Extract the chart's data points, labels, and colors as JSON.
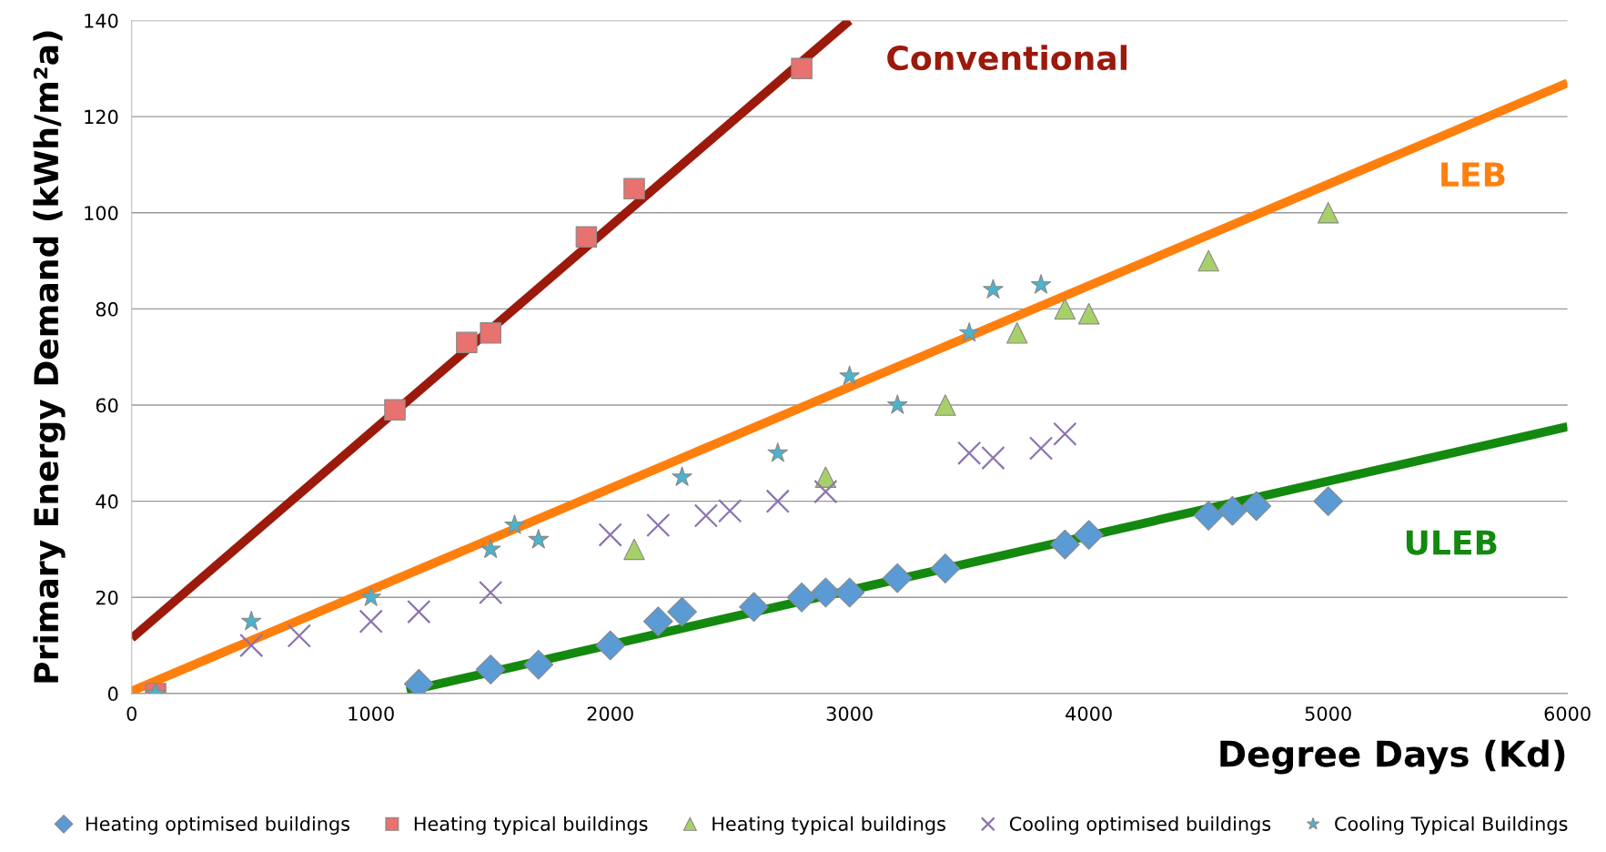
{
  "chart_data": {
    "type": "scatter",
    "xlabel": "Degree Days (Kd)",
    "ylabel": "Primary Energy Demand (kWh/m²a)",
    "xlim": [
      0,
      6000
    ],
    "xticks": [
      0,
      1000,
      2000,
      3000,
      4000,
      5000,
      6000
    ],
    "ylim": [
      0,
      140
    ],
    "yticks": [
      0,
      20,
      40,
      60,
      80,
      100,
      120,
      140
    ],
    "grid": "y",
    "legend": "bottom",
    "series": [
      {
        "name": "Heating optimised buildings",
        "color": "#5b9bd5",
        "marker": "diamond",
        "x": [
          1200,
          1500,
          1700,
          2000,
          2200,
          2300,
          2600,
          2800,
          2900,
          3000,
          3200,
          3400,
          3900,
          4000,
          4500,
          4600,
          4700,
          5000
        ],
        "values": [
          2,
          5,
          6,
          10,
          15,
          17,
          18,
          20,
          21,
          21,
          24,
          26,
          31,
          33,
          37,
          38,
          39,
          40
        ]
      },
      {
        "name": "Heating typical buildings",
        "color": "#e8726f",
        "marker": "square",
        "x": [
          100,
          1100,
          1400,
          1500,
          1900,
          2100,
          2800
        ],
        "values": [
          0,
          59,
          73,
          75,
          95,
          105,
          130
        ]
      },
      {
        "name": "Heating typical buildings",
        "color": "#a8d06a",
        "marker": "triangle",
        "x": [
          100,
          2100,
          2900,
          3400,
          3700,
          3900,
          4000,
          4500,
          5000
        ],
        "values": [
          0,
          30,
          45,
          60,
          75,
          80,
          79,
          90,
          100
        ]
      },
      {
        "name": "Cooling optimised buildings",
        "color": "#8c73b0",
        "marker": "cross",
        "x": [
          500,
          700,
          1000,
          1200,
          1500,
          2000,
          2200,
          2400,
          2500,
          2700,
          2900,
          3500,
          3600,
          3800,
          3900
        ],
        "values": [
          10,
          12,
          15,
          17,
          21,
          33,
          35,
          37,
          38,
          40,
          42,
          50,
          49,
          51,
          54
        ]
      },
      {
        "name": "Cooling Typical Buildings",
        "color": "#4bb3cc",
        "marker": "star",
        "x": [
          100,
          500,
          1000,
          1500,
          1600,
          1700,
          2300,
          2700,
          3000,
          3200,
          3500,
          3600,
          3800
        ],
        "values": [
          0,
          15,
          20,
          30,
          35,
          32,
          45,
          50,
          66,
          60,
          75,
          84,
          85
        ]
      },
      {
        "type": "line",
        "name": "Conventional",
        "color": "#9b1a0c",
        "x": [
          0,
          3000
        ],
        "values": [
          11.5,
          140
        ]
      },
      {
        "type": "line",
        "name": "LEB",
        "color": "#ff7f0e",
        "x": [
          0,
          6000
        ],
        "values": [
          0.5,
          127
        ]
      },
      {
        "type": "line",
        "name": "ULEB",
        "color": "#13890f",
        "x": [
          1150,
          6000
        ],
        "values": [
          0.5,
          55.5
        ]
      }
    ]
  }
}
